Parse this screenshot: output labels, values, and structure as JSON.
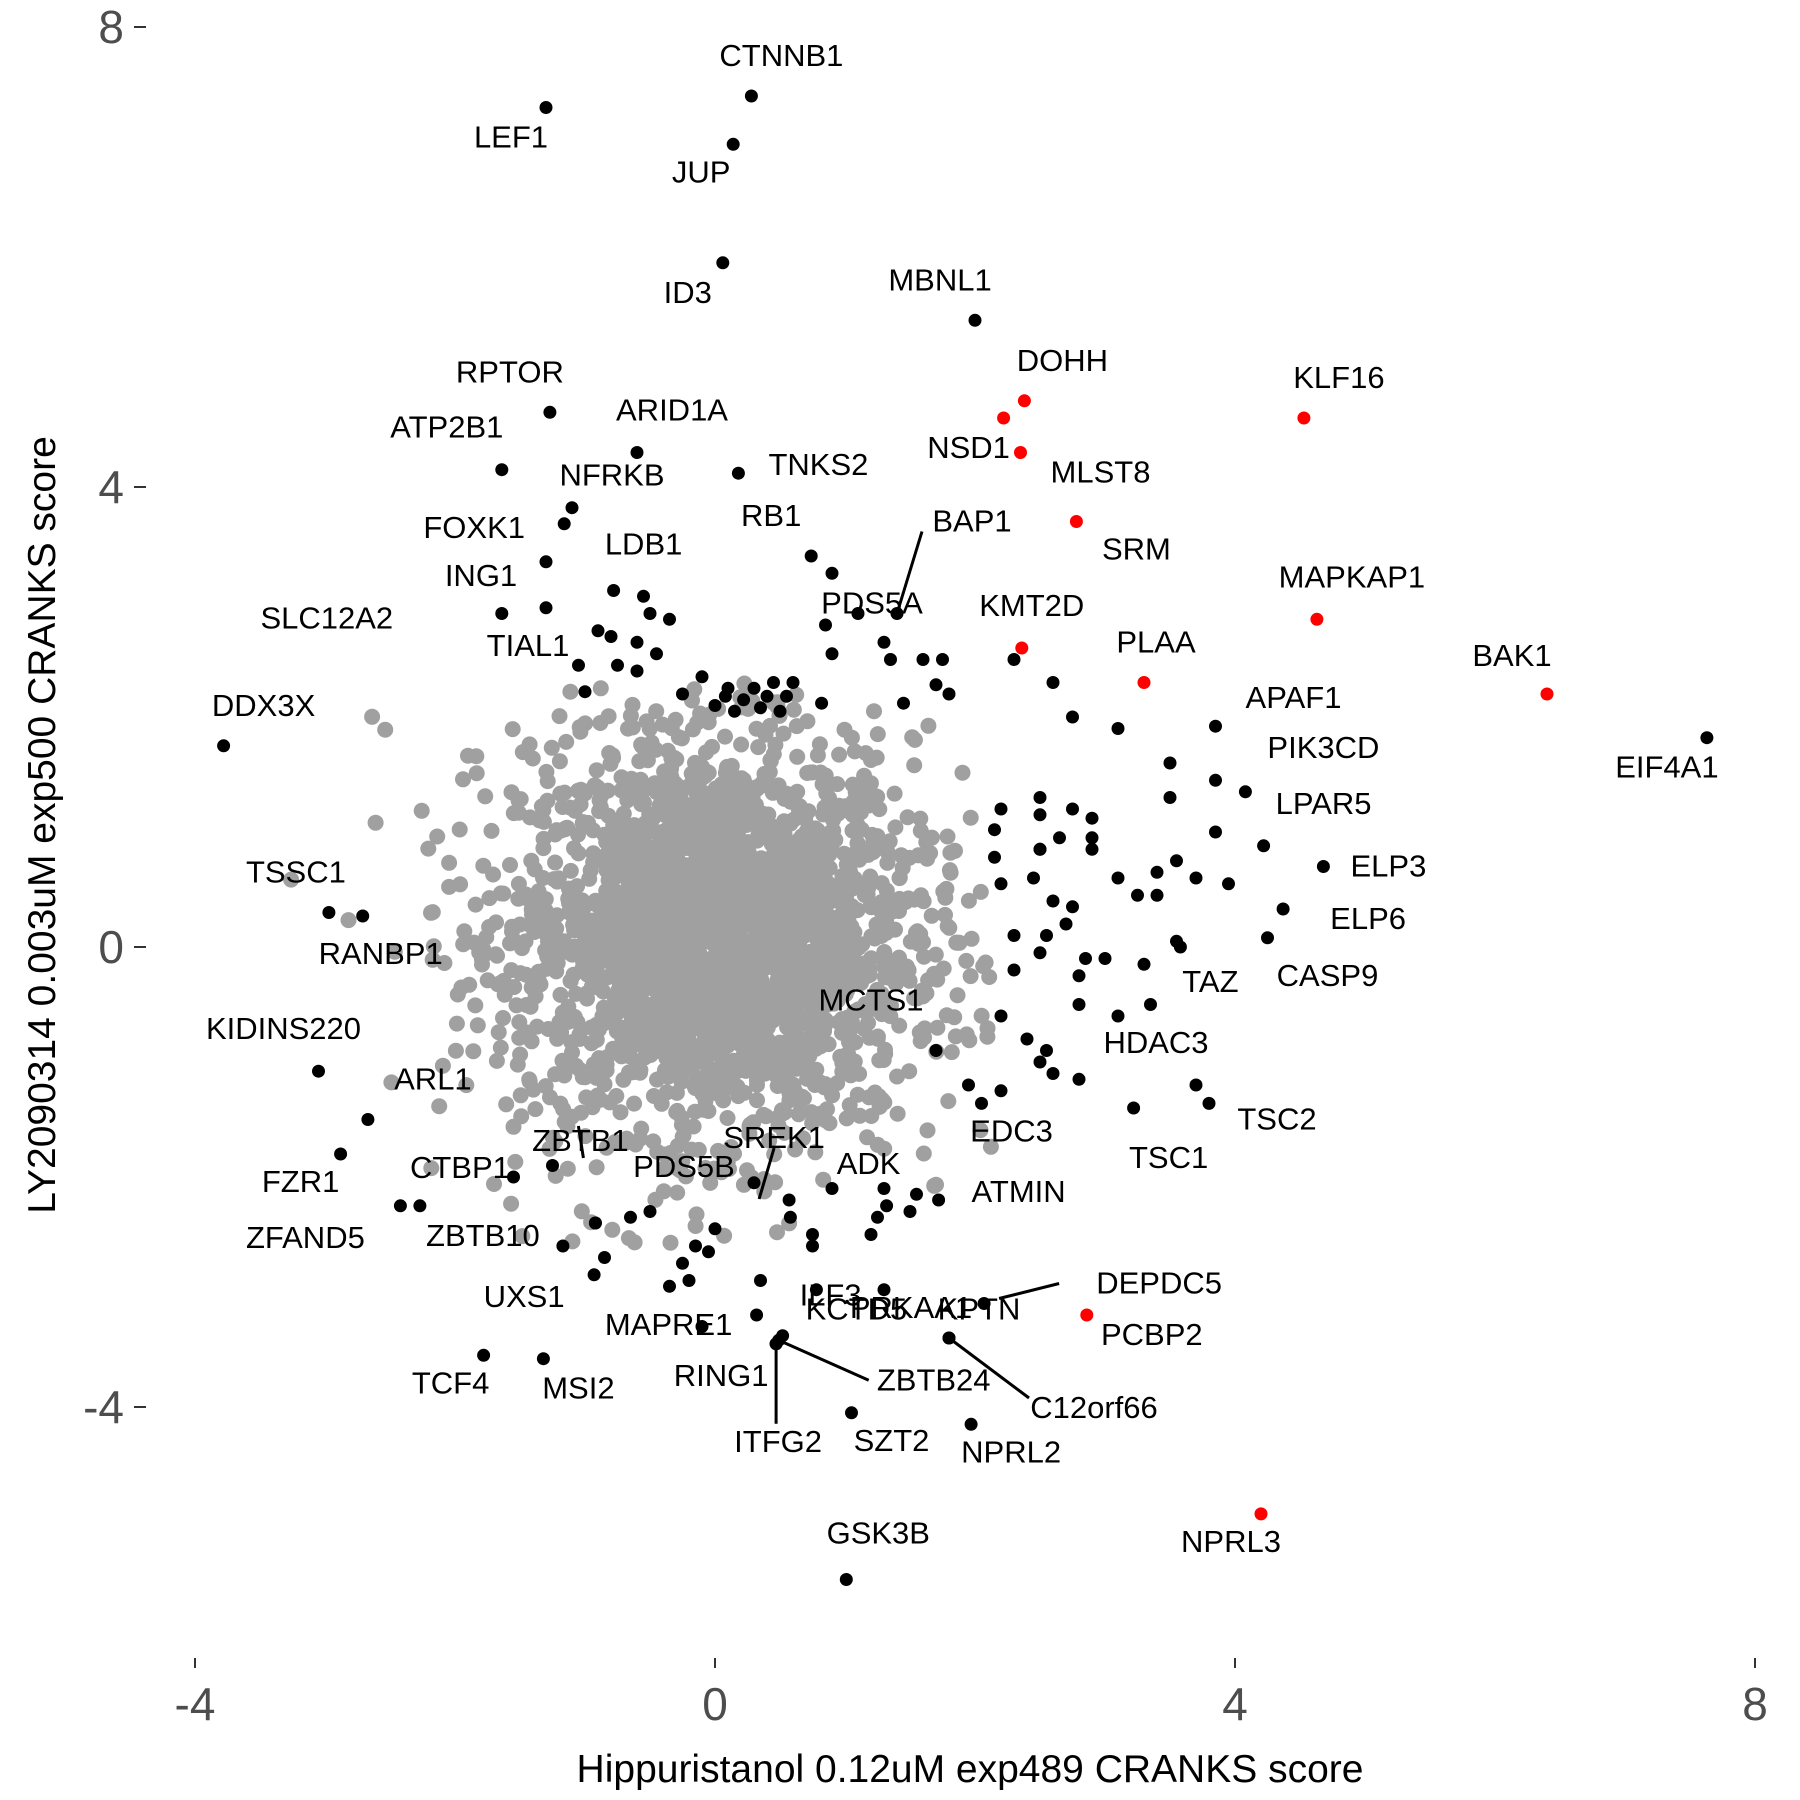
{
  "chart_data": {
    "type": "scatter",
    "xlabel": "Hippuristanol 0.12uM exp489 CRANKS score",
    "ylabel": "LY2090314 0.003uM exp500 CRANKS score",
    "xlim": [
      -4.5,
      8.2
    ],
    "ylim": [
      -6.1,
      8.1
    ],
    "xticks": [
      -4,
      0,
      4,
      8
    ],
    "yticks": [
      -4,
      0,
      4,
      8
    ],
    "grid": false,
    "legend": "none",
    "colors": {
      "background": "#ffffff",
      "cloud": "#a0a0a0",
      "highlight": "#000000",
      "red": "#ff0000"
    },
    "background_cloud": {
      "description_free": true,
      "count": 2600,
      "center": [
        0,
        0.1
      ],
      "sd": [
        0.75,
        0.85
      ]
    },
    "labeled_points": [
      {
        "label": "CTNNB1",
        "x": 0.28,
        "y": 7.4,
        "color": "black"
      },
      {
        "label": "LEF1",
        "x": -1.3,
        "y": 7.3,
        "color": "black"
      },
      {
        "label": "JUP",
        "x": 0.14,
        "y": 6.98,
        "color": "black"
      },
      {
        "label": "ID3",
        "x": 0.06,
        "y": 5.95,
        "color": "black"
      },
      {
        "label": "MBNL1",
        "x": 2.0,
        "y": 5.45,
        "color": "black"
      },
      {
        "label": "DOHH",
        "x": 2.38,
        "y": 4.75,
        "color": "red"
      },
      {
        "label": "KLF16",
        "x": 4.53,
        "y": 4.6,
        "color": "red"
      },
      {
        "label": "RPTOR",
        "x": -1.27,
        "y": 4.65,
        "color": "black"
      },
      {
        "label": "ATP2B1",
        "x": -1.64,
        "y": 4.15,
        "color": "black"
      },
      {
        "label": "ARID1A",
        "x": -0.6,
        "y": 4.3,
        "color": "black"
      },
      {
        "label": "NSD1",
        "x": 2.22,
        "y": 4.6,
        "color": "red"
      },
      {
        "label": "MLST8",
        "x": 2.35,
        "y": 4.3,
        "color": "red"
      },
      {
        "label": "TNKS2",
        "x": 0.18,
        "y": 4.12,
        "color": "black"
      },
      {
        "label": "NFRKB",
        "x": -1.1,
        "y": 3.82,
        "color": "black"
      },
      {
        "label": "FOXK1",
        "x": -1.16,
        "y": 3.68,
        "color": "black"
      },
      {
        "label": "RB1",
        "x": 0.74,
        "y": 3.4,
        "color": "black"
      },
      {
        "label": "BAP1",
        "x": 1.4,
        "y": 2.9,
        "color": "black"
      },
      {
        "label": "SRM",
        "x": 2.78,
        "y": 3.7,
        "color": "red"
      },
      {
        "label": "ING1",
        "x": -1.3,
        "y": 3.35,
        "color": "black"
      },
      {
        "label": "LDB1",
        "x": -0.78,
        "y": 3.1,
        "color": "black"
      },
      {
        "label": "PDS5A",
        "x": 0.9,
        "y": 3.25,
        "color": "black"
      },
      {
        "label": "MAPKAP1",
        "x": 4.63,
        "y": 2.85,
        "color": "red"
      },
      {
        "label": "SLC12A2",
        "x": -1.64,
        "y": 2.9,
        "color": "black"
      },
      {
        "label": "TIAL1",
        "x": -1.3,
        "y": 2.95,
        "color": "black"
      },
      {
        "label": "KMT2D",
        "x": 2.36,
        "y": 2.6,
        "color": "red"
      },
      {
        "label": "PLAA",
        "x": 3.3,
        "y": 2.3,
        "color": "red"
      },
      {
        "label": "BAK1",
        "x": 6.4,
        "y": 2.2,
        "color": "red"
      },
      {
        "label": "DDX3X",
        "x": -3.78,
        "y": 1.75,
        "color": "black"
      },
      {
        "label": "APAF1",
        "x": 3.85,
        "y": 1.92,
        "color": "black"
      },
      {
        "label": "EIF4A1",
        "x": 7.63,
        "y": 1.82,
        "color": "black"
      },
      {
        "label": "PIK3CD",
        "x": 4.08,
        "y": 1.35,
        "color": "black"
      },
      {
        "label": "LPAR5",
        "x": 4.22,
        "y": 0.88,
        "color": "black"
      },
      {
        "label": "ELP3",
        "x": 4.68,
        "y": 0.7,
        "color": "black"
      },
      {
        "label": "TSSC1",
        "x": -2.97,
        "y": 0.3,
        "color": "black"
      },
      {
        "label": "RANBP1",
        "x": -2.71,
        "y": 0.27,
        "color": "black"
      },
      {
        "label": "ELP6",
        "x": 4.37,
        "y": 0.33,
        "color": "black"
      },
      {
        "label": "CASP9",
        "x": 4.25,
        "y": 0.08,
        "color": "black"
      },
      {
        "label": "TAZ",
        "x": 3.58,
        "y": 0.0,
        "color": "black"
      },
      {
        "label": "KIDINS220",
        "x": -3.05,
        "y": -1.08,
        "color": "black"
      },
      {
        "label": "MCTS1",
        "x": 1.7,
        "y": -0.9,
        "color": "black"
      },
      {
        "label": "HDAC3",
        "x": 3.7,
        "y": -1.2,
        "color": "black"
      },
      {
        "label": "ARL1",
        "x": -2.67,
        "y": -1.5,
        "color": "black"
      },
      {
        "label": "TSC2",
        "x": 3.8,
        "y": -1.36,
        "color": "black"
      },
      {
        "label": "EDC3",
        "x": 2.05,
        "y": -1.36,
        "color": "black"
      },
      {
        "label": "TSC1",
        "x": 3.22,
        "y": -1.4,
        "color": "black"
      },
      {
        "label": "ZBTB1",
        "x": -0.92,
        "y": -2.4,
        "color": "black"
      },
      {
        "label": "SREK1",
        "x": 0.57,
        "y": -2.2,
        "color": "black"
      },
      {
        "label": "FZR1",
        "x": -2.88,
        "y": -1.8,
        "color": "black"
      },
      {
        "label": "CTBP1",
        "x": -2.27,
        "y": -2.25,
        "color": "black"
      },
      {
        "label": "ADK",
        "x": 1.32,
        "y": -2.25,
        "color": "black"
      },
      {
        "label": "ATMIN",
        "x": 1.72,
        "y": -2.2,
        "color": "black"
      },
      {
        "label": "PDS5B",
        "x": 0.3,
        "y": -2.05,
        "color": "black"
      },
      {
        "label": "ZFAND5",
        "x": -2.42,
        "y": -2.25,
        "color": "black"
      },
      {
        "label": "ZBTB10",
        "x": -1.17,
        "y": -2.6,
        "color": "black"
      },
      {
        "label": "KCTD5",
        "x": 0.78,
        "y": -2.98,
        "color": "black"
      },
      {
        "label": "KPTN",
        "x": 1.3,
        "y": -2.98,
        "color": "black"
      },
      {
        "label": "DEPDC5",
        "x": 2.07,
        "y": -3.1,
        "color": "black"
      },
      {
        "label": "UXS1",
        "x": -0.93,
        "y": -2.85,
        "color": "black"
      },
      {
        "label": "MAPRE1",
        "x": 0.32,
        "y": -3.2,
        "color": "black"
      },
      {
        "label": "ILF3",
        "x": 0.52,
        "y": -3.38,
        "color": "black"
      },
      {
        "label": "PRKAA1",
        "x": 1.8,
        "y": -3.4,
        "color": "black"
      },
      {
        "label": "PCBP2",
        "x": 2.86,
        "y": -3.2,
        "color": "red"
      },
      {
        "label": "ZBTB24",
        "x": 0.49,
        "y": -3.42,
        "color": "black"
      },
      {
        "label": "C12orf66",
        "x": 1.8,
        "y": -3.4,
        "color": "black"
      },
      {
        "label": "TCF4",
        "x": -1.78,
        "y": -3.55,
        "color": "black"
      },
      {
        "label": "MSI2",
        "x": -1.32,
        "y": -3.58,
        "color": "black"
      },
      {
        "label": "RING1",
        "x": 0.47,
        "y": -3.45,
        "color": "black"
      },
      {
        "label": "ITFG2",
        "x": 0.47,
        "y": -3.45,
        "color": "black"
      },
      {
        "label": "SZT2",
        "x": 1.05,
        "y": -4.05,
        "color": "black"
      },
      {
        "label": "NPRL2",
        "x": 1.97,
        "y": -4.15,
        "color": "black"
      },
      {
        "label": "NPRL3",
        "x": 4.2,
        "y": -4.93,
        "color": "red"
      },
      {
        "label": "GSK3B",
        "x": 1.01,
        "y": -5.5,
        "color": "black"
      }
    ],
    "label_offsets": {},
    "unlabeled_black": [
      [
        -0.55,
        3.05
      ],
      [
        -0.5,
        2.9
      ],
      [
        -0.35,
        2.85
      ],
      [
        -0.9,
        2.75
      ],
      [
        -0.8,
        2.7
      ],
      [
        -0.6,
        2.65
      ],
      [
        -0.45,
        2.55
      ],
      [
        -1.05,
        2.45
      ],
      [
        -0.75,
        2.45
      ],
      [
        -0.6,
        2.4
      ],
      [
        -1.0,
        2.22
      ],
      [
        -0.25,
        2.2
      ],
      [
        -0.1,
        2.35
      ],
      [
        0.1,
        2.25
      ],
      [
        0.3,
        2.25
      ],
      [
        0.45,
        2.3
      ],
      [
        0.6,
        2.3
      ],
      [
        0.85,
        2.8
      ],
      [
        1.1,
        2.9
      ],
      [
        1.3,
        2.65
      ],
      [
        0.9,
        2.55
      ],
      [
        1.35,
        2.5
      ],
      [
        1.6,
        2.5
      ],
      [
        1.75,
        2.5
      ],
      [
        1.8,
        2.2
      ],
      [
        0.08,
        2.18
      ],
      [
        0.22,
        2.15
      ],
      [
        0.4,
        2.18
      ],
      [
        0.55,
        2.18
      ],
      [
        0.0,
        2.1
      ],
      [
        0.15,
        2.05
      ],
      [
        0.35,
        2.08
      ],
      [
        0.5,
        2.05
      ],
      [
        0.82,
        2.12
      ],
      [
        1.45,
        2.12
      ],
      [
        1.7,
        2.28
      ],
      [
        2.3,
        2.5
      ],
      [
        2.6,
        2.3
      ],
      [
        2.75,
        2.0
      ],
      [
        3.1,
        1.9
      ],
      [
        3.5,
        1.6
      ],
      [
        3.5,
        1.3
      ],
      [
        3.85,
        1.45
      ],
      [
        3.85,
        1.0
      ],
      [
        2.5,
        1.3
      ],
      [
        2.5,
        1.15
      ],
      [
        2.75,
        1.2
      ],
      [
        2.9,
        1.12
      ],
      [
        2.65,
        0.95
      ],
      [
        2.9,
        0.95
      ],
      [
        2.9,
        0.85
      ],
      [
        2.5,
        0.85
      ],
      [
        2.2,
        1.2
      ],
      [
        2.15,
        1.02
      ],
      [
        2.15,
        0.78
      ],
      [
        2.5,
        0.85
      ],
      [
        2.2,
        0.55
      ],
      [
        2.45,
        0.6
      ],
      [
        2.6,
        0.4
      ],
      [
        2.75,
        0.35
      ],
      [
        3.4,
        0.65
      ],
      [
        3.55,
        0.75
      ],
      [
        3.4,
        0.45
      ],
      [
        3.25,
        0.45
      ],
      [
        3.7,
        0.6
      ],
      [
        3.95,
        0.55
      ],
      [
        3.1,
        0.6
      ],
      [
        2.3,
        0.1
      ],
      [
        2.55,
        0.1
      ],
      [
        2.7,
        0.2
      ],
      [
        2.85,
        -0.1
      ],
      [
        2.5,
        -0.05
      ],
      [
        2.3,
        -0.2
      ],
      [
        3.0,
        -0.1
      ],
      [
        3.3,
        -0.15
      ],
      [
        2.8,
        -0.25
      ],
      [
        2.8,
        -0.5
      ],
      [
        2.2,
        -0.6
      ],
      [
        2.4,
        -0.8
      ],
      [
        2.55,
        -0.9
      ],
      [
        2.5,
        -1.0
      ],
      [
        2.6,
        -1.1
      ],
      [
        2.8,
        -1.15
      ],
      [
        3.1,
        -0.6
      ],
      [
        3.35,
        -0.5
      ],
      [
        3.55,
        0.05
      ],
      [
        2.2,
        -1.25
      ],
      [
        1.95,
        -1.2
      ],
      [
        -0.92,
        -2.4
      ],
      [
        0.0,
        -2.45
      ],
      [
        -0.15,
        -2.6
      ],
      [
        -0.05,
        -2.65
      ],
      [
        -0.25,
        -2.75
      ],
      [
        -0.5,
        -2.3
      ],
      [
        -0.65,
        -2.35
      ],
      [
        -0.85,
        -2.7
      ],
      [
        -0.2,
        -2.9
      ],
      [
        -0.35,
        -2.95
      ],
      [
        -0.1,
        -3.3
      ],
      [
        0.35,
        -2.9
      ],
      [
        0.58,
        -2.35
      ],
      [
        0.75,
        -2.5
      ],
      [
        0.75,
        -2.6
      ],
      [
        1.25,
        -2.35
      ],
      [
        1.5,
        -2.3
      ],
      [
        1.2,
        -2.5
      ],
      [
        1.55,
        -2.15
      ],
      [
        0.9,
        -2.1
      ],
      [
        1.3,
        -2.1
      ],
      [
        -1.55,
        -2.0
      ],
      [
        -1.25,
        -1.9
      ]
    ]
  }
}
